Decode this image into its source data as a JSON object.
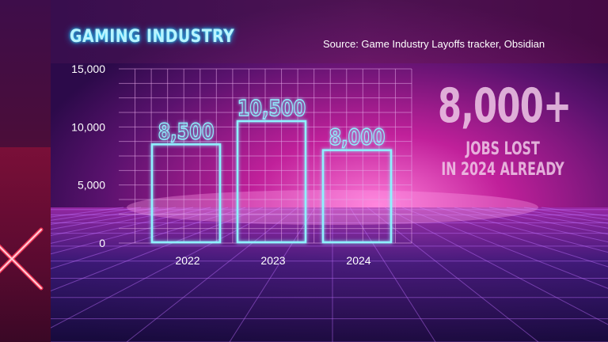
{
  "header": {
    "title": "GAMING INDUSTRY",
    "source": "Source: Game Industry Layoffs tracker, Obsidian"
  },
  "callout": {
    "number": "8,000+",
    "line1": "JOBS LOST",
    "line2": "IN 2024 ALREADY"
  },
  "colors": {
    "bar_neon": "#8ff2ff",
    "axis_pink": "#ff9ce6",
    "grid": "#e6a8e8",
    "title_glow": "#2fe0ff",
    "cross": "#ff3a5a"
  },
  "chart_data": {
    "type": "bar",
    "title": "GAMING INDUSTRY",
    "xlabel": "",
    "ylabel": "",
    "categories": [
      "2022",
      "2023",
      "2024"
    ],
    "values": [
      8500,
      10500,
      8000
    ],
    "value_labels": [
      "8,500",
      "10,500",
      "8,000"
    ],
    "ylim": [
      0,
      15000
    ],
    "yticks": [
      0,
      5000,
      10000,
      15000
    ],
    "ytick_labels": [
      "0",
      "5,000",
      "10,000",
      "15,000"
    ],
    "grid": true,
    "legend": "none"
  }
}
